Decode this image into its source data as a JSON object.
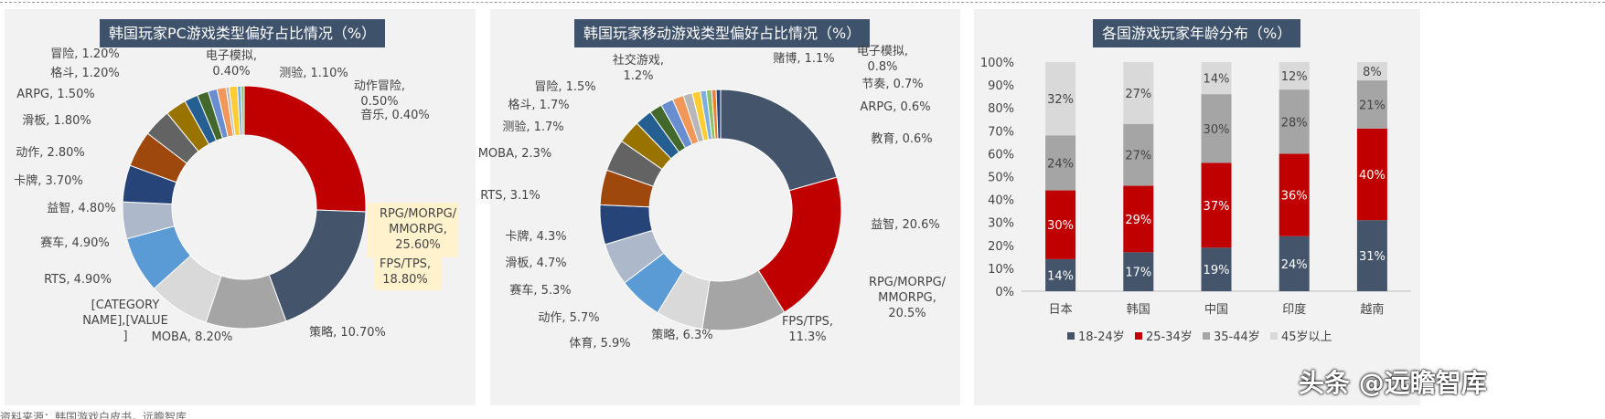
{
  "colors": {
    "palette": [
      "#c00000",
      "#44546a",
      "#a5a5a5",
      "#d9d9d9",
      "#5b9bd5",
      "#adb9ca",
      "#264478",
      "#9e480e",
      "#636363",
      "#997300",
      "#255e91",
      "#43682b",
      "#698ed0",
      "#f1975a",
      "#b7b7b7",
      "#ffcd33",
      "#7cafdd",
      "#8cc168",
      "#ed7d31"
    ],
    "age_series": [
      "#44546a",
      "#c00000",
      "#a5a5a5",
      "#d9d9d9"
    ]
  },
  "footnote": "资料来源：韩国游戏白皮书，远瞻智库",
  "watermark": "头条 @远瞻智库",
  "chart_data": [
    {
      "type": "pie",
      "donut": true,
      "title": "韩国玩家PC游戏类型偏好占比情况（%）",
      "categories": [
        "RPG/MORPG/MMORPG",
        "FPS/TPS",
        "策略",
        "MOBA",
        "[CATEGORY NAME]",
        "RTS",
        "赛车",
        "益智",
        "卡牌",
        "动作",
        "滑板",
        "ARPG",
        "格斗",
        "冒险",
        "电子模拟",
        "测验",
        "动作冒险",
        "音乐"
      ],
      "values": [
        25.6,
        18.8,
        10.7,
        8.2,
        7.5,
        4.9,
        4.9,
        4.8,
        3.7,
        2.8,
        1.8,
        1.5,
        1.2,
        1.2,
        0.4,
        1.1,
        0.5,
        0.4
      ],
      "labels": [
        "RPG/MORPG/\nMMORPG,\n25.60%",
        "FPS/TPS,\n18.80%",
        "策略, 10.70%",
        "MOBA, 8.20%",
        "[CATEGORY\nNAME],[VALUE\n]",
        "RTS, 4.90%",
        "赛车, 4.90%",
        "益智, 4.80%",
        "卡牌, 3.70%",
        "动作, 2.80%",
        "滑板, 1.80%",
        "ARPG, 1.50%",
        "格斗, 1.20%",
        "冒险, 1.20%",
        "电子模拟,\n0.40%",
        "测验, 1.10%",
        "动作冒险,\n0.50%",
        "音乐, 0.40%"
      ]
    },
    {
      "type": "pie",
      "donut": true,
      "title": "韩国玩家移动游戏类型偏好占比情况（%）",
      "categories": [
        "益智",
        "RPG/MORPG/MMORPG",
        "FPS/TPS",
        "策略",
        "体育",
        "动作",
        "赛车",
        "滑板",
        "卡牌",
        "RTS",
        "MOBA",
        "测验",
        "格斗",
        "冒险",
        "社交游戏",
        "赌博",
        "电子模拟",
        "节奏",
        "ARPG",
        "教育"
      ],
      "values": [
        20.6,
        20.5,
        11.3,
        6.3,
        5.9,
        5.7,
        5.3,
        4.7,
        4.3,
        3.1,
        2.3,
        1.7,
        1.7,
        1.5,
        1.2,
        1.1,
        0.8,
        0.7,
        0.6,
        0.6
      ],
      "labels": [
        "益智, 20.6%",
        "RPG/MORPG/\nMMORPG,\n20.5%",
        "FPS/TPS,\n11.3%",
        "策略, 6.3%",
        "体育, 5.9%",
        "动作, 5.7%",
        "赛车, 5.3%",
        "滑板, 4.7%",
        "卡牌, 4.3%",
        "RTS, 3.1%",
        "MOBA, 2.3%",
        "测验, 1.7%",
        "格斗, 1.7%",
        "冒险, 1.5%",
        "社交游戏,\n1.2%",
        "赌博, 1.1%",
        "电子模拟,\n0.8%",
        "节奏, 0.7%",
        "ARPG, 0.6%",
        "教育, 0.6%"
      ]
    },
    {
      "type": "bar",
      "stacked": true,
      "title": "各国游戏玩家年龄分布（%）",
      "categories": [
        "日本",
        "韩国",
        "中国",
        "印度",
        "越南"
      ],
      "series": [
        {
          "name": "18-24岁",
          "values": [
            14,
            17,
            19,
            24,
            31
          ]
        },
        {
          "name": "25-34岁",
          "values": [
            30,
            29,
            37,
            36,
            40
          ]
        },
        {
          "name": "35-44岁",
          "values": [
            24,
            27,
            30,
            28,
            21
          ]
        },
        {
          "name": "45岁以上",
          "values": [
            32,
            27,
            14,
            12,
            8
          ]
        }
      ],
      "ylim": [
        0,
        100
      ],
      "yticks": [
        "0%",
        "10%",
        "20%",
        "30%",
        "40%",
        "50%",
        "60%",
        "70%",
        "80%",
        "90%",
        "100%"
      ],
      "legend_position": "bottom"
    }
  ]
}
